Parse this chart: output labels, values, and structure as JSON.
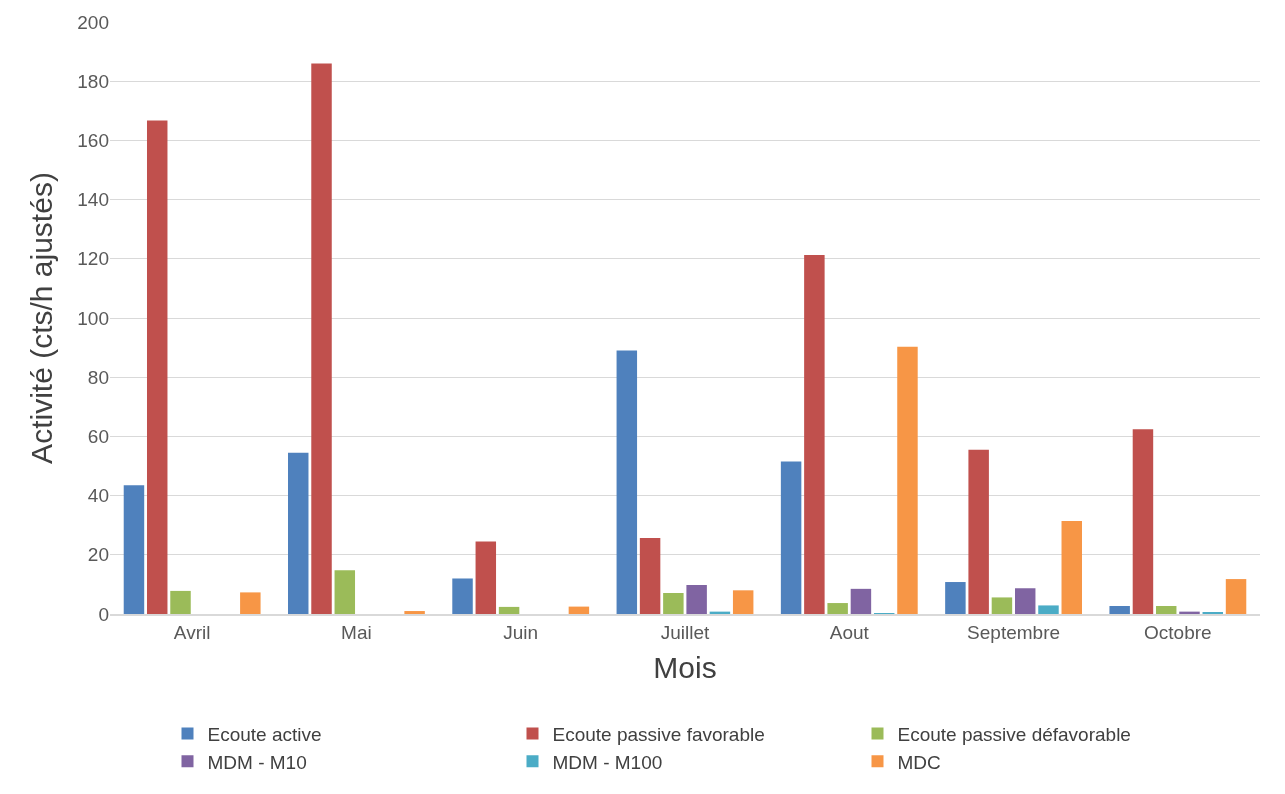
{
  "chart_data": {
    "type": "bar",
    "xlabel": "Mois",
    "ylabel": "Activité (cts/h ajustés)",
    "categories": [
      "Avril",
      "Mai",
      "Juin",
      "Juillet",
      "Aout",
      "Septembre",
      "Octobre"
    ],
    "series": [
      {
        "name": "Ecoute active",
        "color": "#4f81bd",
        "values": [
          43.5,
          54.5,
          12,
          89,
          51.5,
          10.8,
          2.7
        ]
      },
      {
        "name": "Ecoute passive favorable",
        "color": "#c0504d",
        "values": [
          166.7,
          186,
          24.5,
          25.7,
          121.3,
          55.5,
          62.4
        ]
      },
      {
        "name": "Ecoute passive défavorable",
        "color": "#9bbb59",
        "values": [
          7.8,
          14.8,
          2.4,
          7.1,
          3.7,
          5.6,
          2.7
        ]
      },
      {
        "name": "MDM - M10",
        "color": "#8064a2",
        "values": [
          null,
          null,
          null,
          9.8,
          8.5,
          8.7,
          0.8
        ]
      },
      {
        "name": "MDM - M100",
        "color": "#4bacc6",
        "values": [
          null,
          null,
          null,
          0.8,
          0.3,
          2.9,
          0.5
        ]
      },
      {
        "name": "MDC",
        "color": "#f79646",
        "values": [
          7.3,
          1,
          2.5,
          8,
          90.3,
          31.4,
          11.8
        ]
      }
    ],
    "ylim": [
      0,
      200
    ],
    "yticks": [
      0,
      20,
      40,
      60,
      80,
      100,
      120,
      140,
      160,
      180,
      200
    ],
    "grid": "y",
    "legend": "bottom"
  }
}
